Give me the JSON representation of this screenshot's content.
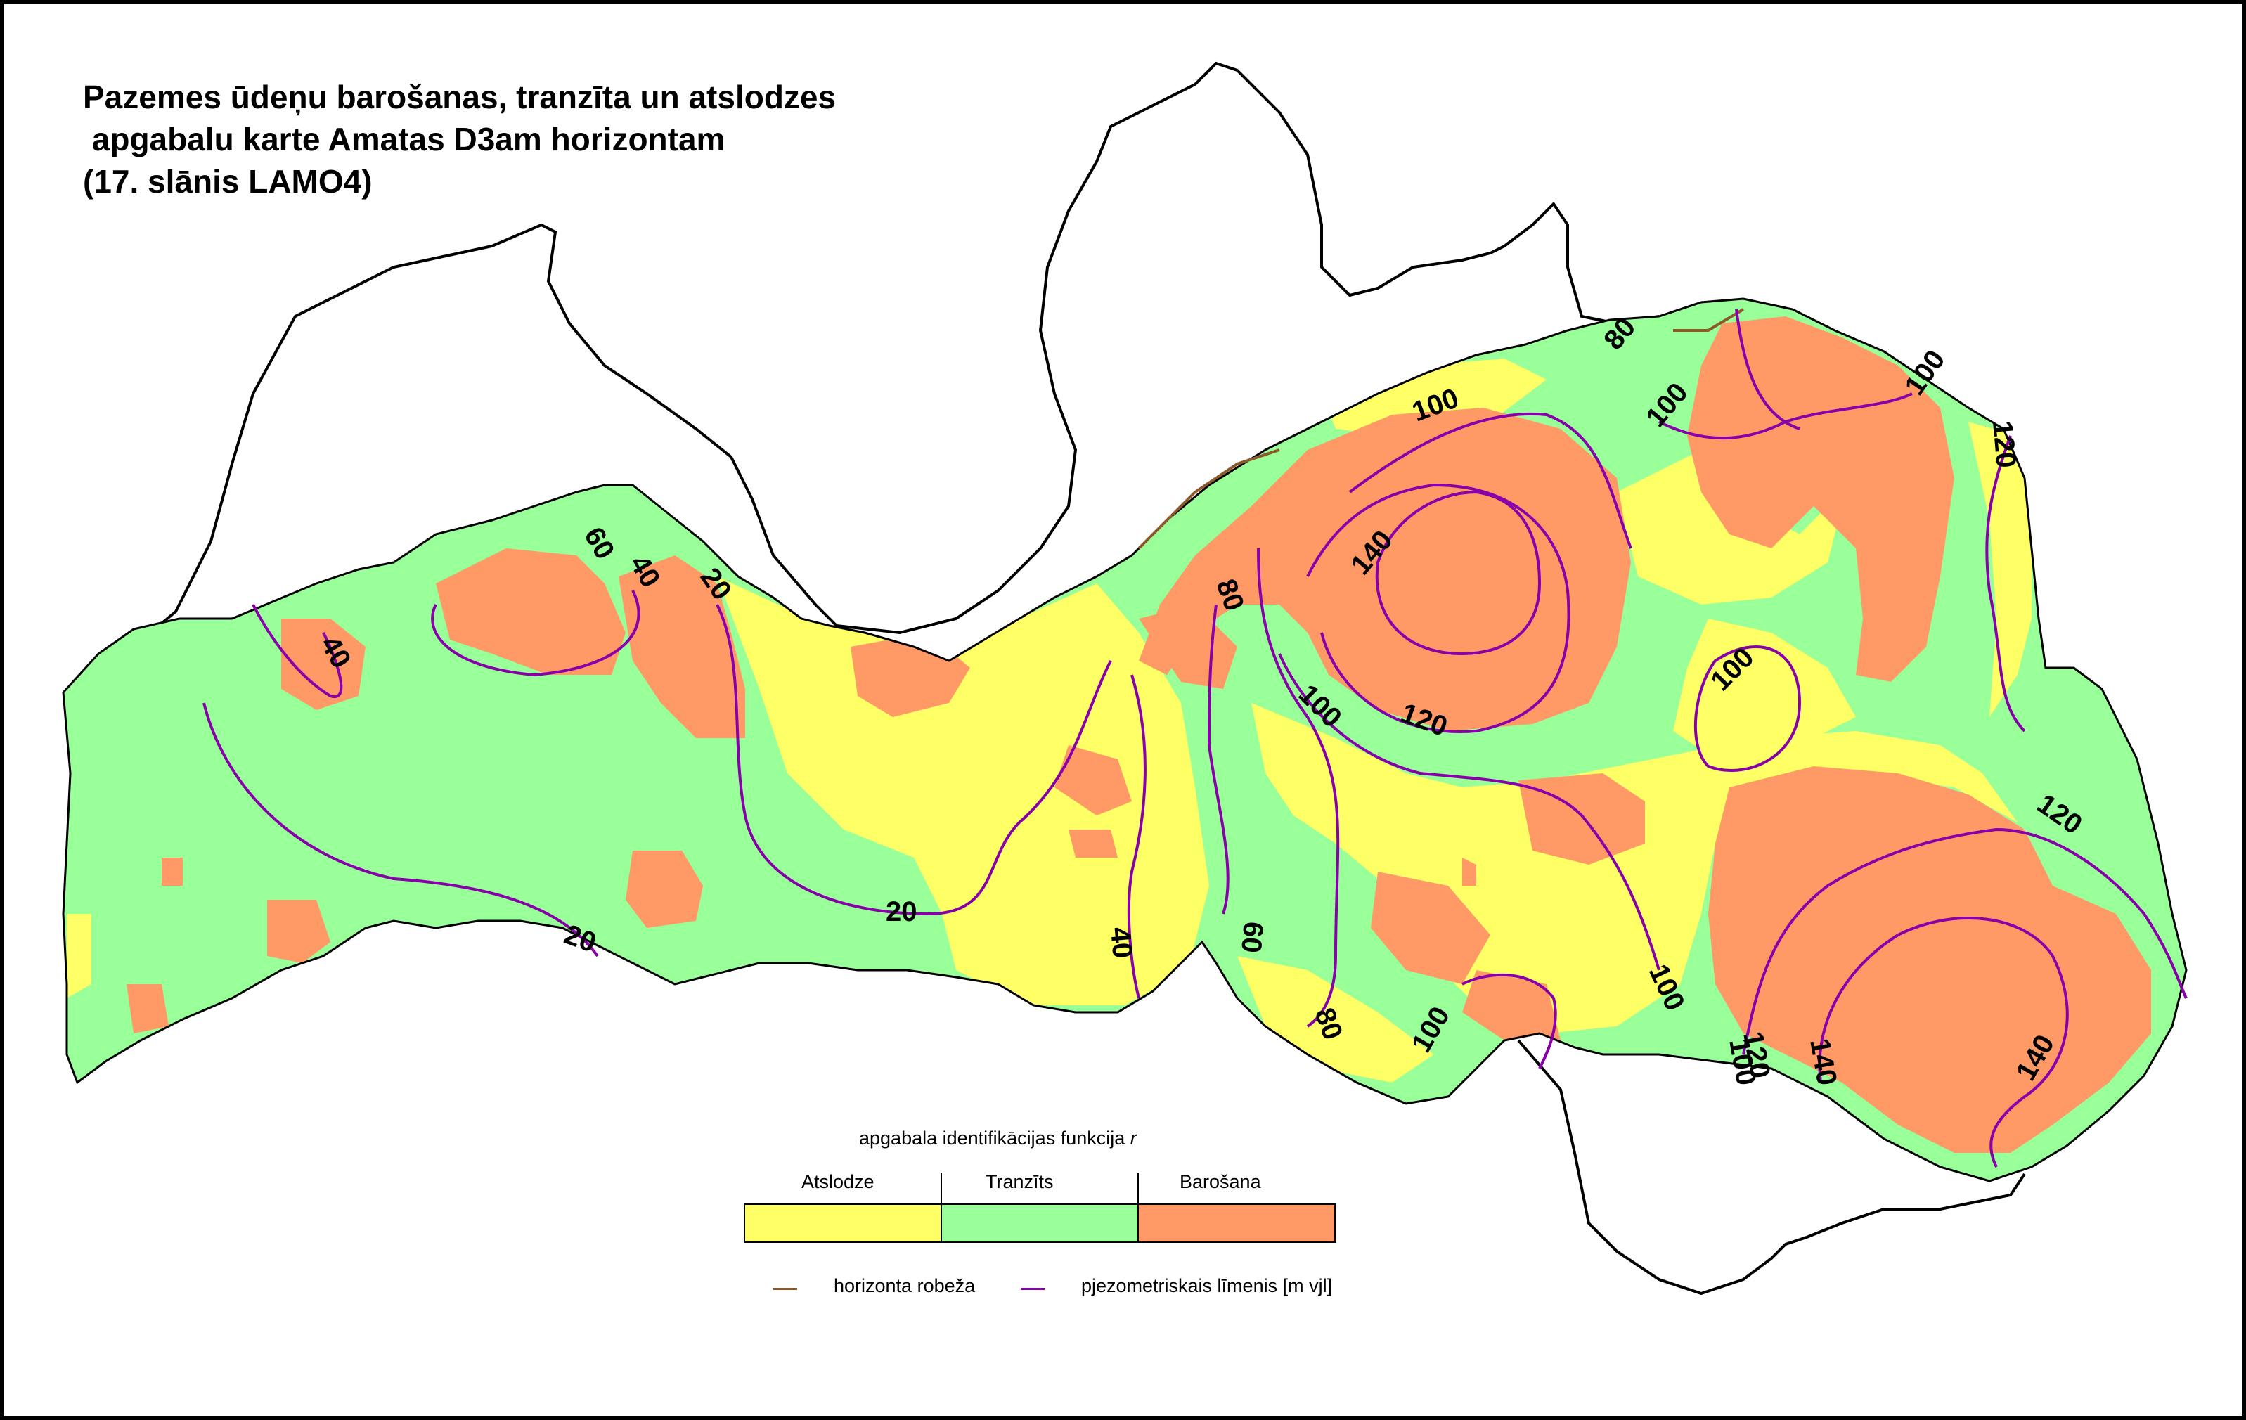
{
  "title": {
    "line1": "Pazemes ūdeņu barošanas, tranzīta un atslodzes",
    "line2": " apgabalu karte Amatas D3am horizontam",
    "line3": "(17. slānis LAMO4)"
  },
  "colors": {
    "atslodze": "#ffff66",
    "tranzits": "#99ff99",
    "barosana": "#ff9966",
    "horizonta_robeza": "#8b5a2b",
    "pjezometriskais": "#8800aa"
  },
  "contour_labels": [
    "40",
    "60",
    "40",
    "20",
    "20",
    "20",
    "40",
    "60",
    "80",
    "80",
    "100",
    "100",
    "80",
    "100",
    "140",
    "120",
    "100",
    "120",
    "100",
    "100",
    "100",
    "100",
    "120",
    "120",
    "140",
    "140"
  ],
  "legend": {
    "caption": "apgabala identifikācijas funkcija",
    "caption_var": "r",
    "classes": [
      "Atslodze",
      "Tranzīts",
      "Barošana"
    ],
    "lines": [
      "horizonta robeža",
      "pjezometriskais līmenis [m vjl]"
    ]
  }
}
